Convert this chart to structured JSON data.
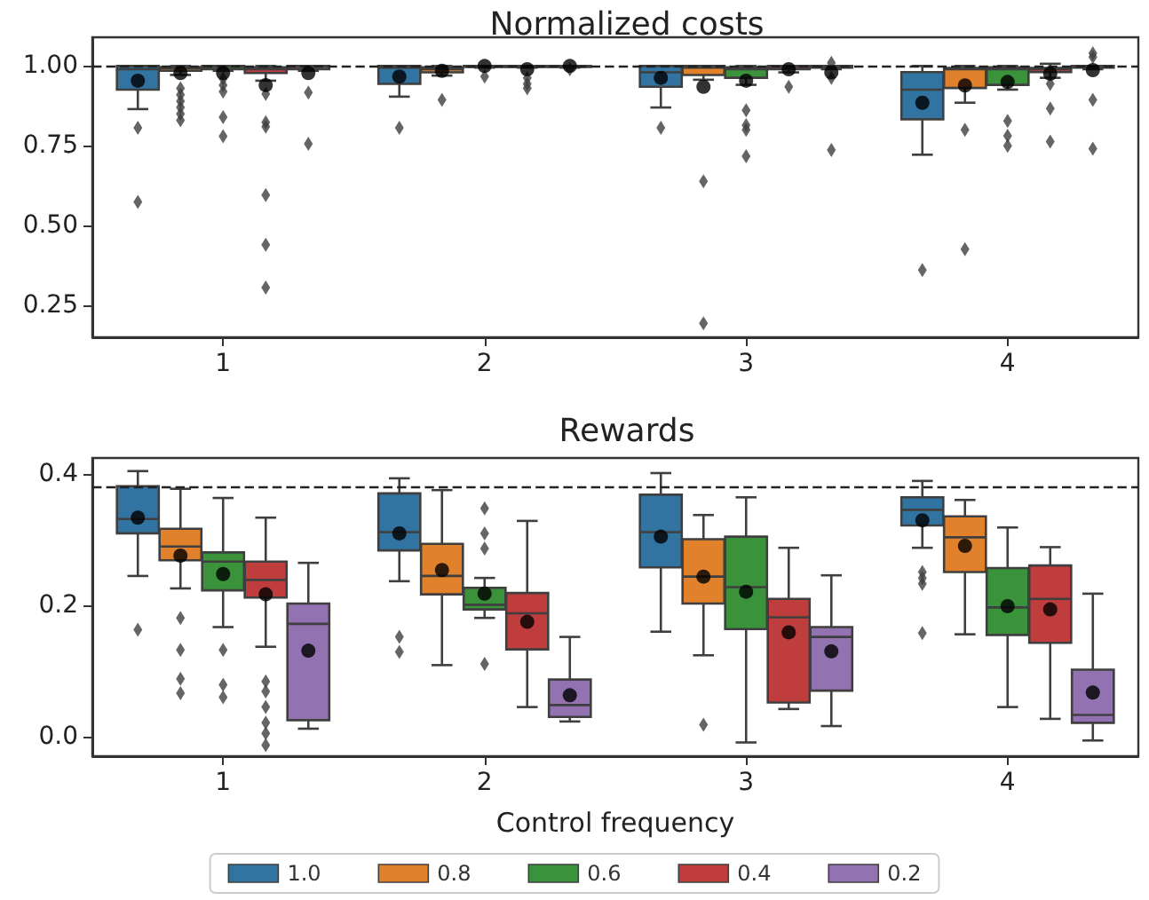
{
  "chart_data": [
    {
      "type": "box",
      "title": "Normalized costs",
      "categories": [
        "1",
        "2",
        "3",
        "4"
      ],
      "ylim": [
        0.15,
        1.09
      ],
      "yticks": [
        {
          "value": 0.25,
          "label": "0.25"
        },
        {
          "value": 0.5,
          "label": "0.50"
        },
        {
          "value": 0.75,
          "label": "0.75"
        },
        {
          "value": 1.0,
          "label": "1.00"
        }
      ],
      "legend": false,
      "ref_lines": [
        {
          "axis": "y",
          "value": 1.0,
          "color": "#222222",
          "line_style": "dashed"
        }
      ],
      "series": [
        {
          "color": "#3274a1",
          "boxes": [
            {
              "low": 0.865,
              "q1": 0.926,
              "median": 0.99,
              "q3": 1.0,
              "high": 1.0,
              "mean": 0.954,
              "outliers": [
                0.806,
                0.574
              ]
            },
            {
              "low": 0.904,
              "q1": 0.944,
              "median": 0.995,
              "q3": 1.0,
              "high": 1.0,
              "mean": 0.967,
              "outliers": [
                0.806
              ]
            },
            {
              "low": 0.87,
              "q1": 0.935,
              "median": 0.98,
              "q3": 1.0,
              "high": 1.0,
              "mean": 0.963,
              "outliers": [
                0.806
              ]
            },
            {
              "low": 0.722,
              "q1": 0.833,
              "median": 0.926,
              "q3": 0.981,
              "high": 1.0,
              "mean": 0.885,
              "outliers": [
                0.361
              ]
            }
          ]
        },
        {
          "color": "#e1812c",
          "boxes": [
            {
              "low": 0.972,
              "q1": 0.985,
              "median": 0.993,
              "q3": 0.997,
              "high": 1.0,
              "mean": 0.978,
              "outliers": [
                0.93,
                0.91,
                0.89,
                0.87,
                0.85,
                0.83
              ]
            },
            {
              "low": 0.97,
              "q1": 0.98,
              "median": 0.99,
              "q3": 0.996,
              "high": 1.0,
              "mean": 0.985,
              "outliers": [
                0.894
              ]
            },
            {
              "low": 0.957,
              "q1": 0.972,
              "median": 0.995,
              "q3": 1.0,
              "high": 1.0,
              "mean": 0.935,
              "outliers": [
                0.639,
                0.194
              ]
            },
            {
              "low": 0.885,
              "q1": 0.931,
              "median": 0.99,
              "q3": 0.994,
              "high": 1.0,
              "mean": 0.939,
              "outliers": [
                0.8,
                0.426
              ]
            }
          ]
        },
        {
          "color": "#3a923a",
          "boxes": [
            {
              "low": 0.985,
              "q1": 0.99,
              "median": 0.998,
              "q3": 1.0,
              "high": 1.0,
              "mean": 0.978,
              "outliers": [
                0.96,
                0.94,
                0.92,
                0.84,
                0.78
              ]
            },
            {
              "low": 0.995,
              "q1": 0.998,
              "median": 1.0,
              "q3": 1.0,
              "high": 1.0,
              "mean": 1.0,
              "outliers": [
                0.967
              ]
            },
            {
              "low": 0.941,
              "q1": 0.963,
              "median": 0.99,
              "q3": 0.996,
              "high": 1.0,
              "mean": 0.954,
              "outliers": [
                0.861,
                0.815,
                0.8,
                0.717
              ]
            },
            {
              "low": 0.926,
              "q1": 0.941,
              "median": 0.99,
              "q3": 0.996,
              "high": 1.0,
              "mean": 0.95,
              "outliers": [
                0.828,
                0.781,
                0.75
              ]
            }
          ]
        },
        {
          "color": "#c03d3e",
          "boxes": [
            {
              "low": 0.954,
              "q1": 0.978,
              "median": 0.99,
              "q3": 0.996,
              "high": 1.0,
              "mean": 0.94,
              "outliers": [
                0.913,
                0.824,
                0.81,
                0.596,
                0.44,
                0.306
              ]
            },
            {
              "low": 0.995,
              "q1": 0.998,
              "median": 1.0,
              "q3": 1.0,
              "high": 1.0,
              "mean": 0.99,
              "outliers": [
                0.963,
                0.944,
                0.93
              ]
            },
            {
              "low": 0.98,
              "q1": 0.99,
              "median": 0.998,
              "q3": 1.0,
              "high": 1.0,
              "mean": 0.99,
              "outliers": [
                0.935
              ]
            },
            {
              "low": 0.963,
              "q1": 0.981,
              "median": 0.99,
              "q3": 0.994,
              "high": 1.007,
              "mean": 0.976,
              "outliers": [
                0.944,
                0.867,
                0.763
              ]
            }
          ]
        },
        {
          "color": "#9372b2",
          "boxes": [
            {
              "low": 0.985,
              "q1": 0.99,
              "median": 0.998,
              "q3": 1.0,
              "high": 1.0,
              "mean": 0.978,
              "outliers": [
                0.917,
                0.756
              ]
            },
            {
              "low": 0.995,
              "q1": 0.998,
              "median": 1.0,
              "q3": 1.0,
              "high": 1.0,
              "mean": 1.0,
              "outliers": [
                0.99
              ]
            },
            {
              "low": 0.99,
              "q1": 0.995,
              "median": 1.0,
              "q3": 1.0,
              "high": 1.0,
              "mean": 0.98,
              "outliers": [
                1.01,
                0.963,
                0.737
              ]
            },
            {
              "low": 0.99,
              "q1": 0.995,
              "median": 1.0,
              "q3": 1.0,
              "high": 1.0,
              "mean": 0.987,
              "outliers": [
                1.04,
                1.028,
                0.894,
                0.741
              ]
            }
          ]
        }
      ]
    },
    {
      "type": "box",
      "title": "Rewards",
      "xlabel": "Control frequency",
      "categories": [
        "1",
        "2",
        "3",
        "4"
      ],
      "ylim": [
        -0.03,
        0.425
      ],
      "yticks": [
        {
          "value": 0,
          "label": "0.0"
        },
        {
          "value": 0.2,
          "label": "0.2"
        },
        {
          "value": 0.4,
          "label": "0.4"
        }
      ],
      "legend": "bottom",
      "ref_lines": [
        {
          "axis": "y",
          "value": 0.379,
          "color": "#222222",
          "line_style": "dashed"
        }
      ],
      "series": [
        {
          "name": "1.0",
          "color": "#3274a1",
          "boxes": [
            {
              "low": 0.245,
              "q1": 0.31,
              "median": 0.332,
              "q3": 0.382,
              "high": 0.405,
              "mean": 0.334,
              "outliers": [
                0.163
              ]
            },
            {
              "low": 0.237,
              "q1": 0.284,
              "median": 0.312,
              "q3": 0.371,
              "high": 0.394,
              "mean": 0.31,
              "outliers": [
                0.152,
                0.129
              ]
            },
            {
              "low": 0.16,
              "q1": 0.258,
              "median": 0.312,
              "q3": 0.369,
              "high": 0.402,
              "mean": 0.305
            },
            {
              "low": 0.288,
              "q1": 0.322,
              "median": 0.346,
              "q3": 0.365,
              "high": 0.39,
              "mean": 0.33,
              "outliers": [
                0.251,
                0.242,
                0.233,
                0.158
              ]
            }
          ]
        },
        {
          "name": "0.8",
          "color": "#e1812c",
          "boxes": [
            {
              "low": 0.226,
              "q1": 0.269,
              "median": 0.29,
              "q3": 0.317,
              "high": 0.378,
              "mean": 0.276,
              "outliers": [
                0.181,
                0.132,
                0.088,
                0.066
              ]
            },
            {
              "low": 0.109,
              "q1": 0.217,
              "median": 0.245,
              "q3": 0.294,
              "high": 0.376,
              "mean": 0.254
            },
            {
              "low": 0.124,
              "q1": 0.203,
              "median": 0.244,
              "q3": 0.301,
              "high": 0.338,
              "mean": 0.244,
              "outliers": [
                0.018
              ]
            },
            {
              "low": 0.156,
              "q1": 0.251,
              "median": 0.304,
              "q3": 0.336,
              "high": 0.361,
              "mean": 0.291
            }
          ]
        },
        {
          "name": "0.6",
          "color": "#3a923a",
          "boxes": [
            {
              "low": 0.167,
              "q1": 0.223,
              "median": 0.267,
              "q3": 0.281,
              "high": 0.364,
              "mean": 0.248,
              "outliers": [
                0.132,
                0.079,
                0.06
              ]
            },
            {
              "low": 0.181,
              "q1": 0.194,
              "median": 0.201,
              "q3": 0.227,
              "high": 0.242,
              "mean": 0.218,
              "outliers": [
                0.348,
                0.31,
                0.287,
                0.111
              ]
            },
            {
              "low": -0.009,
              "q1": 0.164,
              "median": 0.228,
              "q3": 0.305,
              "high": 0.365,
              "mean": 0.221
            },
            {
              "low": 0.045,
              "q1": 0.155,
              "median": 0.197,
              "q3": 0.257,
              "high": 0.319,
              "mean": 0.199
            }
          ]
        },
        {
          "name": "0.4",
          "color": "#c03d3e",
          "boxes": [
            {
              "low": 0.137,
              "q1": 0.212,
              "median": 0.239,
              "q3": 0.267,
              "high": 0.334,
              "mean": 0.217,
              "outliers": [
                0.084,
                0.069,
                0.045,
                0.021,
                0.005,
                -0.013
              ]
            },
            {
              "low": 0.045,
              "q1": 0.133,
              "median": 0.188,
              "q3": 0.219,
              "high": 0.329,
              "mean": 0.175
            },
            {
              "low": 0.042,
              "q1": 0.052,
              "median": 0.182,
              "q3": 0.21,
              "high": 0.288,
              "mean": 0.159
            },
            {
              "low": 0.027,
              "q1": 0.143,
              "median": 0.21,
              "q3": 0.261,
              "high": 0.289,
              "mean": 0.194
            }
          ]
        },
        {
          "name": "0.2",
          "color": "#9372b2",
          "boxes": [
            {
              "low": 0.012,
              "q1": 0.025,
              "median": 0.172,
              "q3": 0.203,
              "high": 0.265,
              "mean": 0.131
            },
            {
              "low": 0.023,
              "q1": 0.03,
              "median": 0.048,
              "q3": 0.087,
              "high": 0.152,
              "mean": 0.063
            },
            {
              "low": 0.016,
              "q1": 0.07,
              "median": 0.152,
              "q3": 0.167,
              "high": 0.246,
              "mean": 0.13
            },
            {
              "low": -0.006,
              "q1": 0.021,
              "median": 0.033,
              "q3": 0.102,
              "high": 0.218,
              "mean": 0.067
            }
          ]
        }
      ]
    }
  ]
}
